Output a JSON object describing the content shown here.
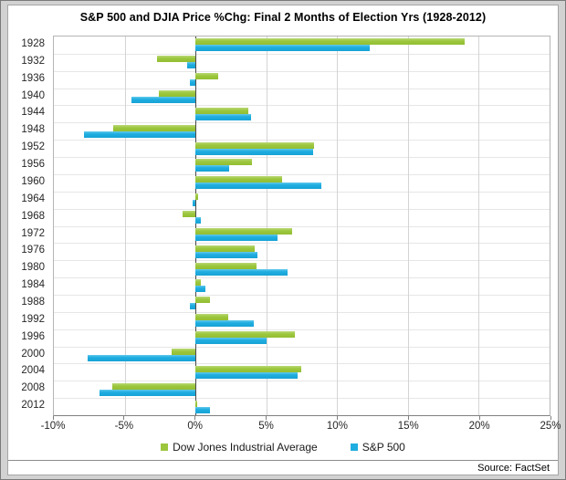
{
  "title": "S&P 500 and DJIA Price %Chg: Final 2 Months of Election Yrs (1928-2012)",
  "source": "Source: FactSet",
  "chart_data": {
    "type": "bar",
    "orientation": "horizontal",
    "title": "S&P 500 and DJIA Price %Chg: Final 2 Months of Election Yrs (1928-2012)",
    "categories": [
      "1928",
      "1932",
      "1936",
      "1940",
      "1944",
      "1948",
      "1952",
      "1956",
      "1960",
      "1964",
      "1968",
      "1972",
      "1976",
      "1980",
      "1984",
      "1988",
      "1992",
      "1996",
      "2000",
      "2004",
      "2008",
      "2012"
    ],
    "series": [
      {
        "name": "Dow Jones Industrial Average",
        "color": "#9CC63C",
        "values": [
          19.0,
          -2.7,
          1.6,
          -2.6,
          3.7,
          -5.8,
          8.4,
          4.0,
          6.1,
          0.2,
          -0.9,
          6.8,
          4.2,
          4.3,
          0.4,
          1.0,
          2.3,
          7.0,
          -1.7,
          7.5,
          -5.9,
          0.1
        ]
      },
      {
        "name": "S&P 500",
        "color": "#1FADE0",
        "values": [
          12.3,
          -0.6,
          -0.4,
          -4.5,
          3.9,
          -7.9,
          8.3,
          2.4,
          8.9,
          -0.2,
          0.4,
          5.8,
          4.4,
          6.5,
          0.7,
          -0.4,
          4.1,
          5.0,
          -7.6,
          7.2,
          -6.8,
          1.0
        ]
      }
    ],
    "xlim": [
      -10,
      25
    ],
    "x_tick_values": [
      -10,
      -5,
      0,
      5,
      10,
      15,
      20,
      25
    ],
    "x_tick_labels": [
      "-10%",
      "-5%",
      "0%",
      "5%",
      "10%",
      "15%",
      "20%",
      "25%"
    ],
    "grid": true,
    "legend_position": "bottom",
    "xlabel": "",
    "ylabel": ""
  }
}
